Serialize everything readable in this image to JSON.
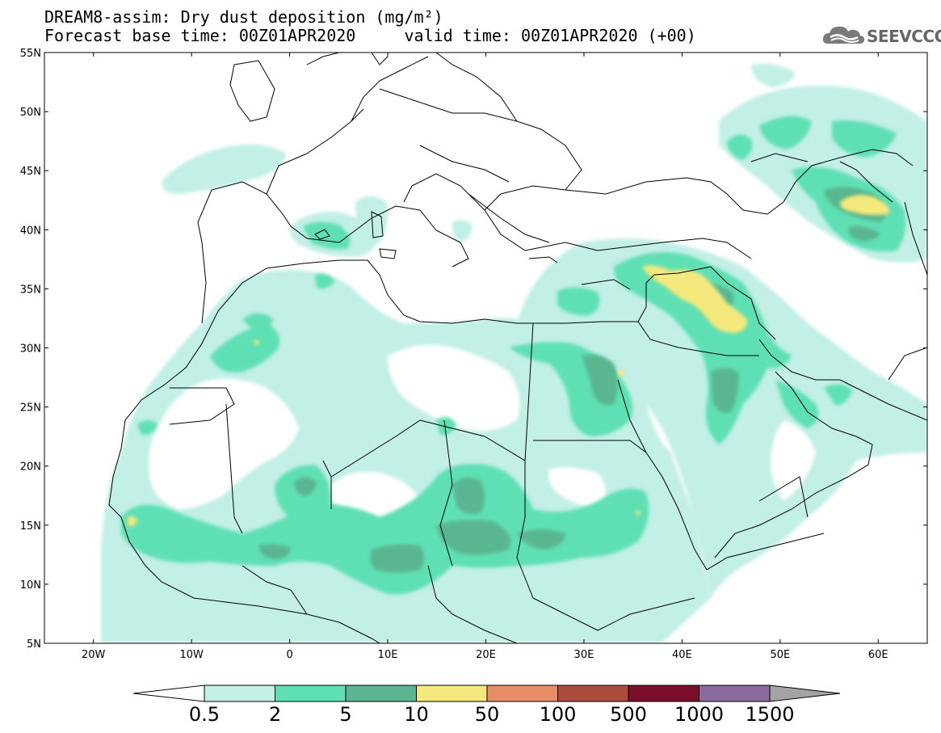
{
  "title": {
    "line1": "DREAM8-assim: Dry dust deposition (mg/m²)",
    "line2": "Forecast base time: 00Z01APR2020     valid time: 00Z01APR2020 (+00)"
  },
  "logo": {
    "text": "SEEVCCC",
    "icon": "cloud-icon"
  },
  "map": {
    "lat_ticks": [
      {
        "label": "55N",
        "lat": 55
      },
      {
        "label": "50N",
        "lat": 50
      },
      {
        "label": "45N",
        "lat": 45
      },
      {
        "label": "40N",
        "lat": 40
      },
      {
        "label": "35N",
        "lat": 35
      },
      {
        "label": "30N",
        "lat": 30
      },
      {
        "label": "25N",
        "lat": 25
      },
      {
        "label": "20N",
        "lat": 20
      },
      {
        "label": "15N",
        "lat": 15
      },
      {
        "label": "10N",
        "lat": 10
      },
      {
        "label": "5N",
        "lat": 5
      }
    ],
    "lon_ticks": [
      {
        "label": "20W",
        "lon": -20
      },
      {
        "label": "10W",
        "lon": -10
      },
      {
        "label": "0",
        "lon": 0
      },
      {
        "label": "10E",
        "lon": 10
      },
      {
        "label": "20E",
        "lon": 20
      },
      {
        "label": "30E",
        "lon": 30
      },
      {
        "label": "40E",
        "lon": 40
      },
      {
        "label": "50E",
        "lon": 50
      },
      {
        "label": "60E",
        "lon": 60
      }
    ]
  },
  "colorbar": {
    "colors": [
      "#c2efe6",
      "#5ee0b4",
      "#5ab691",
      "#f4e97c",
      "#e88e66",
      "#ad4c3e",
      "#7a0e2b",
      "#8b6b9d",
      "#a3a3a3"
    ],
    "left_arrow_color": "#ffffff",
    "labels": [
      "0.5",
      "2",
      "5",
      "10",
      "50",
      "100",
      "500",
      "1000",
      "1500"
    ]
  }
}
